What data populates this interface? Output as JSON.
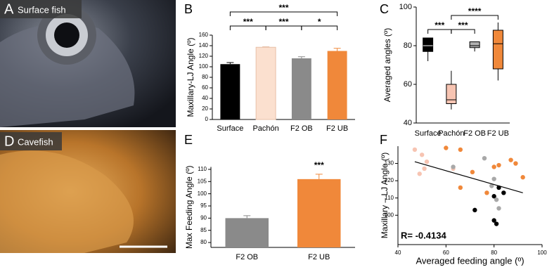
{
  "panels": {
    "A": {
      "letter": "A",
      "caption": "Surface fish"
    },
    "D": {
      "letter": "D",
      "caption": "Cavefish"
    }
  },
  "chart_data": [
    {
      "type": "bar",
      "panel_label": "B",
      "y_label": "Maxillary-LJ Angle (º)",
      "categories": [
        "Surface",
        "Pachón",
        "F2 OB",
        "F2 UB"
      ],
      "values": [
        105,
        137,
        116,
        130
      ],
      "errors": [
        3,
        1,
        3,
        5
      ],
      "colors": [
        "#000000",
        "#fbe0cf",
        "#8a8a8a",
        "#f0883a"
      ],
      "ylim": [
        0,
        160
      ],
      "yticks": [
        0,
        20,
        40,
        60,
        80,
        100,
        120,
        140,
        160
      ],
      "comparisons": [
        {
          "pair": [
            0,
            1
          ],
          "label": "***"
        },
        {
          "pair": [
            1,
            2
          ],
          "label": "***"
        },
        {
          "pair": [
            2,
            3
          ],
          "label": "*"
        },
        {
          "pair": [
            0,
            3
          ],
          "label": "***"
        }
      ]
    },
    {
      "type": "box",
      "panel_label": "C",
      "y_label": "Averaged angles (º)",
      "categories": [
        "Surface",
        "Pachón",
        "F2 OB",
        "F2 UB"
      ],
      "boxes": [
        {
          "min": 72,
          "q1": 77,
          "median": 80,
          "q3": 84,
          "max": 84
        },
        {
          "min": 47,
          "q1": 50,
          "median": 52,
          "q3": 60,
          "max": 67
        },
        {
          "min": 77,
          "q1": 79,
          "median": 80,
          "q3": 82,
          "max": 82
        },
        {
          "min": 62,
          "q1": 68,
          "median": 81,
          "q3": 88,
          "max": 92
        }
      ],
      "colors": [
        "#000000",
        "#f7c4b2",
        "#b0b0b0",
        "#f0883a"
      ],
      "ylim": [
        40,
        100
      ],
      "yticks": [
        40,
        60,
        80,
        100
      ],
      "comparisons": [
        {
          "pair": [
            0,
            1
          ],
          "label": "***"
        },
        {
          "pair": [
            1,
            2
          ],
          "label": "***"
        },
        {
          "pair": [
            1,
            3
          ],
          "label": "****"
        }
      ]
    },
    {
      "type": "bar",
      "panel_label": "E",
      "y_label": "Max Feeding Angle (º)",
      "categories": [
        "F2 OB",
        "F2 UB"
      ],
      "values": [
        90,
        106
      ],
      "errors": [
        1,
        2
      ],
      "colors": [
        "#8a8a8a",
        "#f0883a"
      ],
      "ylim": [
        78,
        111
      ],
      "yticks": [
        80,
        85,
        90,
        95,
        100,
        105,
        110
      ],
      "annotations": [
        {
          "index": 1,
          "label": "***"
        }
      ]
    },
    {
      "type": "scatter",
      "panel_label": "F",
      "x_label": "Averaged feeding angle (º)",
      "y_label": "Maxillary – LJ Angle (º)",
      "xlim": [
        40,
        100
      ],
      "xticks": [
        40,
        60,
        80,
        100
      ],
      "ylim": [
        83,
        140
      ],
      "yticks": [
        100,
        110,
        120,
        130
      ],
      "series": [
        {
          "color": "#000000",
          "x": [
            72,
            80,
            81,
            80,
            82,
            84
          ],
          "y": [
            103,
            97,
            95,
            111,
            116,
            113
          ]
        },
        {
          "color": "#f7c4b2",
          "x": [
            47,
            49,
            50,
            51,
            52,
            63
          ],
          "y": [
            138,
            124,
            135,
            127,
            131,
            127
          ]
        },
        {
          "color": "#a8a8a8",
          "x": [
            63,
            76,
            80,
            81,
            82,
            79
          ],
          "y": [
            128,
            133,
            121,
            109,
            104,
            117
          ]
        },
        {
          "color": "#f0883a",
          "x": [
            60,
            66,
            71,
            77,
            80,
            82,
            87,
            89,
            92,
            66
          ],
          "y": [
            139,
            138,
            125,
            113,
            128,
            129,
            132,
            130,
            122,
            116
          ]
        }
      ],
      "fit": {
        "x": [
          47,
          92
        ],
        "y": [
          131,
          113
        ]
      },
      "annotation": "R= -0.4134"
    }
  ]
}
